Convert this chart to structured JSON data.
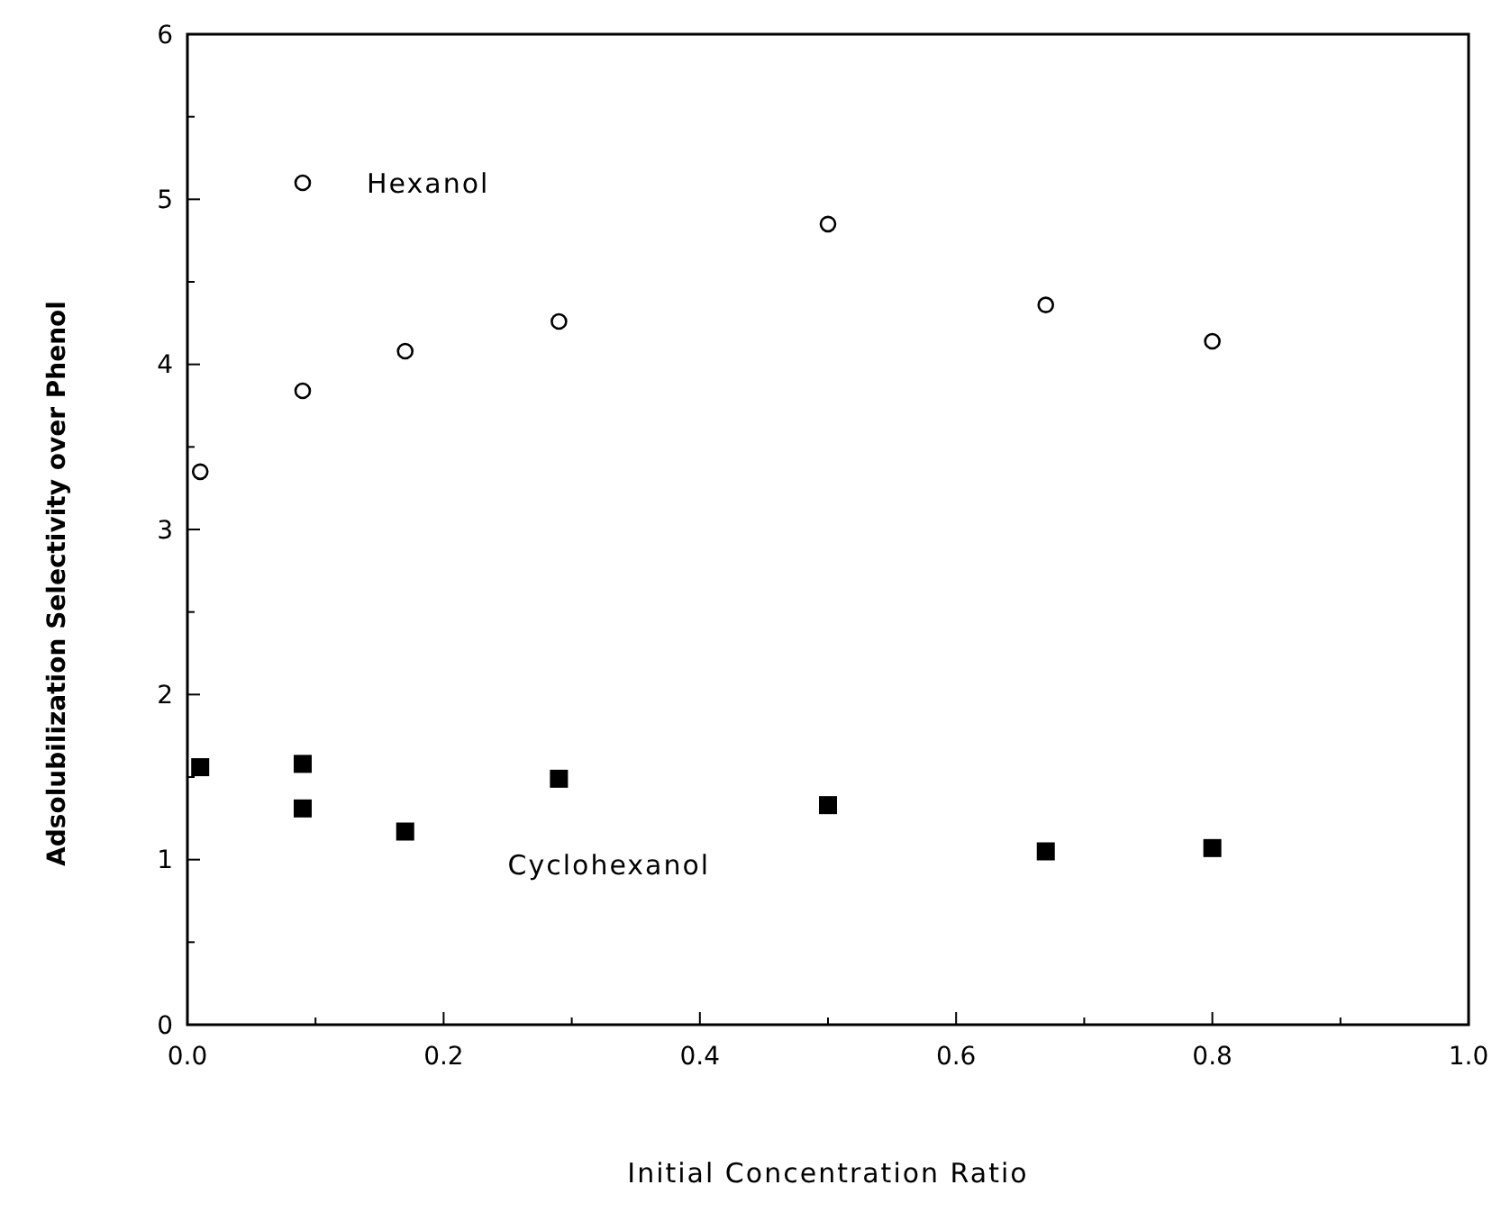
{
  "chart_data": {
    "type": "scatter",
    "xlabel": "Initial Concentration Ratio",
    "ylabel": "Adsolubilization Selectivity over Phenol",
    "xlim": [
      0,
      1
    ],
    "ylim": [
      0,
      6
    ],
    "xticks": [
      {
        "value": 0,
        "label": "0.0"
      },
      {
        "value": 0.1,
        "label": null
      },
      {
        "value": 0.2,
        "label": "0.2"
      },
      {
        "value": 0.3,
        "label": null
      },
      {
        "value": 0.4,
        "label": "0.4"
      },
      {
        "value": 0.5,
        "label": null
      },
      {
        "value": 0.6,
        "label": "0.6"
      },
      {
        "value": 0.7,
        "label": null
      },
      {
        "value": 0.8,
        "label": "0.8"
      },
      {
        "value": 0.9,
        "label": null
      },
      {
        "value": 1,
        "label": "1.0"
      }
    ],
    "yticks": [
      0,
      {
        "value": 0.5,
        "label": null
      },
      1,
      {
        "value": 1.5,
        "label": null
      },
      2,
      {
        "value": 2.5,
        "label": null
      },
      3,
      {
        "value": 3.5,
        "label": null
      },
      4,
      {
        "value": 4.5,
        "label": null
      },
      5,
      {
        "value": 5.5,
        "label": null
      },
      6
    ],
    "grid": false,
    "legend": false,
    "series": [
      {
        "name": "Hexanol",
        "color": "#000000",
        "marker": "circle",
        "x": [
          0.01,
          0.09,
          0.09,
          0.17,
          0.29,
          0.5,
          0.67,
          0.8
        ],
        "values": [
          3.35,
          5.1,
          3.84,
          4.08,
          4.26,
          4.85,
          4.36,
          4.14
        ]
      },
      {
        "name": "Cyclohexanol",
        "color": "#000000",
        "marker": "square",
        "x": [
          0.01,
          0.09,
          0.09,
          0.17,
          0.29,
          0.5,
          0.67,
          0.8
        ],
        "values": [
          1.56,
          1.58,
          1.31,
          1.17,
          1.49,
          1.33,
          1.05,
          1.07
        ]
      }
    ]
  }
}
